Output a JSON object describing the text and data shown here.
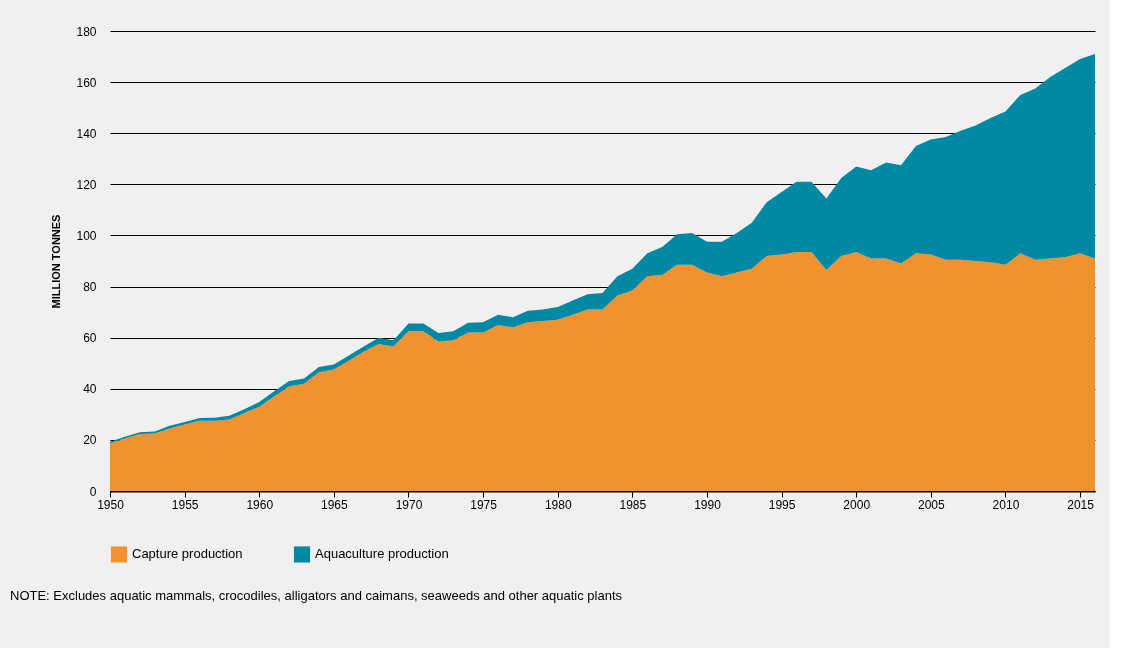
{
  "chart_data": {
    "type": "area",
    "stacked": true,
    "ylabel": "MILLION TONNES",
    "x": [
      1950,
      1951,
      1952,
      1953,
      1954,
      1955,
      1956,
      1957,
      1958,
      1959,
      1960,
      1961,
      1962,
      1963,
      1964,
      1965,
      1966,
      1967,
      1968,
      1969,
      1970,
      1971,
      1972,
      1973,
      1974,
      1975,
      1976,
      1977,
      1978,
      1979,
      1980,
      1981,
      1982,
      1983,
      1984,
      1985,
      1986,
      1987,
      1988,
      1989,
      1990,
      1991,
      1992,
      1993,
      1994,
      1995,
      1996,
      1997,
      1998,
      1999,
      2000,
      2001,
      2002,
      2003,
      2004,
      2005,
      2006,
      2007,
      2008,
      2009,
      2010,
      2011,
      2012,
      2013,
      2014,
      2015,
      2016
    ],
    "series": [
      {
        "name": "Capture production",
        "color": "#f0922f",
        "values": [
          18.7,
          20.5,
          22.3,
          22.5,
          24.5,
          26,
          27.5,
          27.5,
          28,
          30.5,
          33,
          37,
          41,
          42,
          46.5,
          47.5,
          51,
          54.5,
          57.5,
          56.5,
          62.5,
          62.5,
          58.5,
          59,
          62,
          62,
          65,
          64,
          66,
          66.5,
          67,
          69,
          71,
          71,
          76.5,
          78.5,
          84,
          84.5,
          88.5,
          88.5,
          85.5,
          84,
          85.5,
          87,
          92,
          92.5,
          93.5,
          93.5,
          86.5,
          92,
          93.5,
          91,
          91,
          89,
          93,
          92.5,
          90.5,
          90.5,
          90,
          89.5,
          88.5,
          93,
          90.5,
          91,
          91.5,
          93,
          91
        ]
      },
      {
        "name": "Aquaculture production",
        "color": "#0088a4",
        "values": [
          0.6,
          0.7,
          0.7,
          0.8,
          1.0,
          1.0,
          1.1,
          1.2,
          1.4,
          1.5,
          1.8,
          2.0,
          2.0,
          2.0,
          2.0,
          2.0,
          2.0,
          2.0,
          2.5,
          2.5,
          3.0,
          3.0,
          3.3,
          3.5,
          3.8,
          4.0,
          4.0,
          4.0,
          4.5,
          4.5,
          5.0,
          5.5,
          6.0,
          6.5,
          7.5,
          8.5,
          9.0,
          11.0,
          12.0,
          12.5,
          12.0,
          13.5,
          15.5,
          18.0,
          21.0,
          24.5,
          27.5,
          27.5,
          28.0,
          30.5,
          33.5,
          34.5,
          37.5,
          38.5,
          42.0,
          45.0,
          48.0,
          50.5,
          53.0,
          56.5,
          60.0,
          62.0,
          67.0,
          71.0,
          74.0,
          76.0,
          80.0
        ]
      }
    ],
    "xlim": [
      1950,
      2016
    ],
    "xticks": [
      1950,
      1955,
      1960,
      1965,
      1970,
      1975,
      1980,
      1985,
      1990,
      1995,
      2000,
      2005,
      2010,
      2015
    ],
    "ylim": [
      0,
      180
    ],
    "yticks": [
      0,
      20,
      40,
      60,
      80,
      100,
      120,
      140,
      160,
      180
    ],
    "grid": "y",
    "legend": "bottom",
    "annotations": [
      "NOTE: Excludes aquatic mammals, crocodiles, alligators and caimans, seaweeds and other aquatic plants"
    ]
  }
}
